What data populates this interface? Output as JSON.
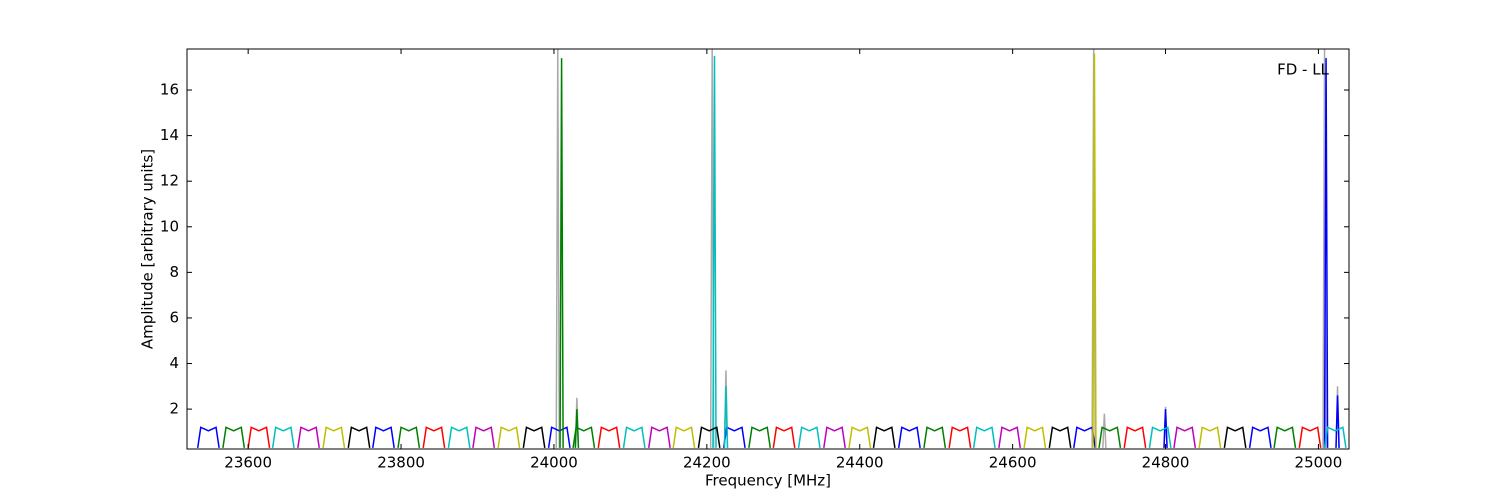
{
  "chart_data": {
    "type": "line",
    "xlabel": "Frequency [MHz]",
    "ylabel": "Amplitude [arbitrary units]",
    "annotation": "FD - LL",
    "xlim": [
      23520,
      25040
    ],
    "ylim": [
      0.25,
      17.8
    ],
    "xticks": [
      23600,
      23800,
      24000,
      24200,
      24400,
      24600,
      24800,
      25000
    ],
    "yticks": [
      2,
      4,
      6,
      8,
      10,
      12,
      14,
      16
    ],
    "grid": false,
    "series": [
      {
        "color": "#aaaaaa",
        "x": [
          24003,
          24005,
          24007,
          null,
          24028,
          24030,
          24032,
          null,
          24205,
          24207,
          24209,
          null,
          24223,
          24225,
          24227,
          null,
          24704,
          24706,
          24708,
          null,
          24718,
          24720,
          24722,
          null,
          24798,
          24800,
          24802,
          null,
          25006,
          25008,
          25010,
          null,
          25023,
          25025,
          25027
        ],
        "values": [
          0.3,
          17.8,
          0.3,
          null,
          0.3,
          2.5,
          0.3,
          null,
          0.3,
          17.8,
          0.3,
          null,
          0.3,
          3.7,
          0.3,
          null,
          0.3,
          17.8,
          0.3,
          null,
          0.3,
          1.8,
          0.3,
          null,
          0.3,
          2.1,
          0.3,
          null,
          0.3,
          17.8,
          0.3,
          null,
          0.3,
          3.0,
          0.3
        ]
      },
      {
        "color": "#0000ff",
        "x": [
          23534,
          23538,
          23548,
          23558,
          23562,
          null,
          23763,
          23767,
          23777,
          23787,
          23791,
          null,
          23993,
          23997,
          24007,
          24017,
          24021,
          null,
          24222,
          24226,
          24236,
          24246,
          24250,
          null,
          24451,
          24455,
          24465,
          24475,
          24479,
          null,
          24680,
          24684,
          24694,
          24704,
          24708,
          null,
          24910,
          24914,
          24924,
          24934,
          24938,
          null,
          24798,
          24800,
          24802,
          null,
          25008,
          25010,
          25012,
          null,
          25023,
          25025,
          25027
        ],
        "values": [
          0.3,
          1.2,
          1.05,
          1.2,
          0.3,
          null,
          0.3,
          1.2,
          1.05,
          1.2,
          0.3,
          null,
          0.3,
          1.2,
          1.05,
          1.2,
          0.3,
          null,
          0.3,
          1.2,
          1.05,
          1.2,
          0.3,
          null,
          0.3,
          1.2,
          1.05,
          1.2,
          0.3,
          null,
          0.3,
          1.2,
          1.05,
          1.2,
          0.3,
          null,
          0.3,
          1.2,
          1.05,
          1.2,
          0.3,
          null,
          0.3,
          2.0,
          0.3,
          null,
          0.3,
          17.4,
          0.3,
          null,
          0.3,
          2.6,
          0.3
        ]
      },
      {
        "color": "#008000",
        "x": [
          23567,
          23571,
          23581,
          23591,
          23595,
          null,
          23796,
          23800,
          23810,
          23820,
          23824,
          null,
          24025,
          24029,
          24039,
          24049,
          24053,
          null,
          24255,
          24259,
          24269,
          24279,
          24283,
          null,
          24484,
          24488,
          24498,
          24508,
          24512,
          null,
          24713,
          24717,
          24727,
          24737,
          24741,
          null,
          24942,
          24946,
          24956,
          24966,
          24970,
          null,
          24008,
          24010,
          24012,
          null,
          24028,
          24030,
          24032
        ],
        "values": [
          0.3,
          1.2,
          1.05,
          1.2,
          0.3,
          null,
          0.3,
          1.2,
          1.05,
          1.2,
          0.3,
          null,
          0.3,
          1.2,
          1.05,
          1.2,
          0.3,
          null,
          0.3,
          1.2,
          1.05,
          1.2,
          0.3,
          null,
          0.3,
          1.2,
          1.05,
          1.2,
          0.3,
          null,
          0.3,
          1.2,
          1.05,
          1.2,
          0.3,
          null,
          0.3,
          1.2,
          1.05,
          1.2,
          0.3,
          null,
          0.3,
          17.4,
          0.3,
          null,
          0.3,
          2.0,
          0.3
        ]
      },
      {
        "color": "#ff0000",
        "x": [
          23600,
          23604,
          23614,
          23624,
          23628,
          null,
          23829,
          23833,
          23843,
          23853,
          23857,
          null,
          24058,
          24062,
          24072,
          24082,
          24086,
          null,
          24287,
          24291,
          24301,
          24311,
          24315,
          null,
          24517,
          24521,
          24531,
          24541,
          24545,
          null,
          24746,
          24750,
          24760,
          24770,
          24774,
          null,
          24975,
          24979,
          24989,
          24999,
          25003
        ],
        "values": [
          0.3,
          1.2,
          1.05,
          1.2,
          0.3,
          null,
          0.3,
          1.2,
          1.05,
          1.2,
          0.3,
          null,
          0.3,
          1.2,
          1.05,
          1.2,
          0.3,
          null,
          0.3,
          1.2,
          1.05,
          1.2,
          0.3,
          null,
          0.3,
          1.2,
          1.05,
          1.2,
          0.3,
          null,
          0.3,
          1.2,
          1.05,
          1.2,
          0.3,
          null,
          0.3,
          1.2,
          1.05,
          1.2,
          0.3
        ]
      },
      {
        "color": "#00bfbf",
        "x": [
          23632,
          23636,
          23646,
          23656,
          23660,
          null,
          23862,
          23866,
          23876,
          23886,
          23890,
          null,
          24091,
          24095,
          24105,
          24115,
          24119,
          null,
          24320,
          24324,
          24334,
          24344,
          24348,
          null,
          24549,
          24553,
          24563,
          24573,
          24577,
          null,
          24779,
          24783,
          24793,
          24803,
          24807,
          null,
          25008,
          25012,
          25022,
          25032,
          25036,
          null,
          24208,
          24210,
          24212,
          null,
          24223,
          24225,
          24227
        ],
        "values": [
          0.3,
          1.2,
          1.05,
          1.2,
          0.3,
          null,
          0.3,
          1.2,
          1.05,
          1.2,
          0.3,
          null,
          0.3,
          1.2,
          1.05,
          1.2,
          0.3,
          null,
          0.3,
          1.2,
          1.05,
          1.2,
          0.3,
          null,
          0.3,
          1.2,
          1.05,
          1.2,
          0.3,
          null,
          0.3,
          1.2,
          1.05,
          1.2,
          0.3,
          null,
          0.3,
          1.2,
          1.05,
          1.2,
          0.3,
          null,
          0.3,
          17.5,
          0.3,
          null,
          0.3,
          3.0,
          0.3
        ]
      },
      {
        "color": "#bf00bf",
        "x": [
          23665,
          23669,
          23679,
          23689,
          23693,
          null,
          23894,
          23898,
          23908,
          23918,
          23922,
          null,
          24124,
          24128,
          24138,
          24148,
          24152,
          null,
          24353,
          24357,
          24367,
          24377,
          24381,
          null,
          24582,
          24586,
          24596,
          24606,
          24610,
          null,
          24811,
          24815,
          24825,
          24835,
          24839
        ],
        "values": [
          0.3,
          1.2,
          1.05,
          1.2,
          0.3,
          null,
          0.3,
          1.2,
          1.05,
          1.2,
          0.3,
          null,
          0.3,
          1.2,
          1.05,
          1.2,
          0.3,
          null,
          0.3,
          1.2,
          1.05,
          1.2,
          0.3,
          null,
          0.3,
          1.2,
          1.05,
          1.2,
          0.3,
          null,
          0.3,
          1.2,
          1.05,
          1.2,
          0.3
        ]
      },
      {
        "color": "#bfbf00",
        "x": [
          23698,
          23702,
          23712,
          23722,
          23726,
          null,
          23927,
          23931,
          23941,
          23951,
          23955,
          null,
          24156,
          24160,
          24170,
          24180,
          24184,
          null,
          24386,
          24390,
          24400,
          24410,
          24414,
          null,
          24615,
          24619,
          24629,
          24639,
          24643,
          null,
          24844,
          24848,
          24858,
          24868,
          24872,
          null,
          24705,
          24707,
          24709
        ],
        "values": [
          0.3,
          1.2,
          1.05,
          1.2,
          0.3,
          null,
          0.3,
          1.2,
          1.05,
          1.2,
          0.3,
          null,
          0.3,
          1.2,
          1.05,
          1.2,
          0.3,
          null,
          0.3,
          1.2,
          1.05,
          1.2,
          0.3,
          null,
          0.3,
          1.2,
          1.05,
          1.2,
          0.3,
          null,
          0.3,
          1.2,
          1.05,
          1.2,
          0.3,
          null,
          0.3,
          17.6,
          0.3
        ]
      },
      {
        "color": "#000000",
        "x": [
          23731,
          23735,
          23745,
          23755,
          23759,
          null,
          23960,
          23964,
          23974,
          23984,
          23988,
          null,
          24189,
          24193,
          24203,
          24213,
          24217,
          null,
          24418,
          24422,
          24432,
          24442,
          24446,
          null,
          24648,
          24652,
          24662,
          24672,
          24676,
          null,
          24877,
          24881,
          24891,
          24901,
          24905
        ],
        "values": [
          0.3,
          1.2,
          1.05,
          1.2,
          0.3,
          null,
          0.3,
          1.2,
          1.05,
          1.2,
          0.3,
          null,
          0.3,
          1.2,
          1.05,
          1.2,
          0.3,
          null,
          0.3,
          1.2,
          1.05,
          1.2,
          0.3,
          null,
          0.3,
          1.2,
          1.05,
          1.2,
          0.3,
          null,
          0.3,
          1.2,
          1.05,
          1.2,
          0.3
        ]
      }
    ]
  }
}
